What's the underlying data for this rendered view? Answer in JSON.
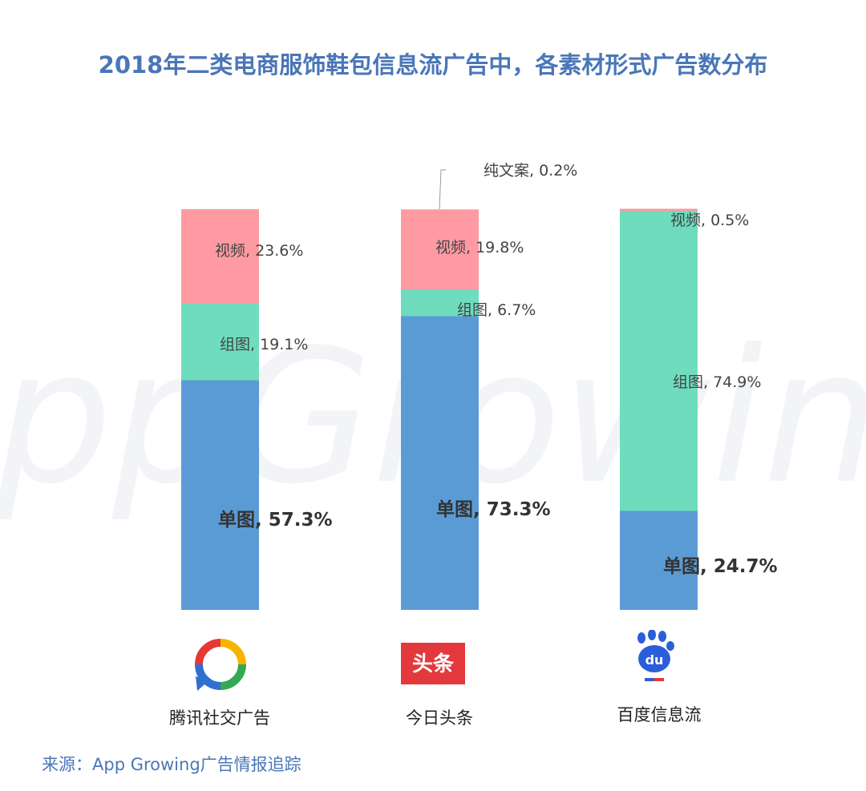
{
  "chart_data": {
    "type": "bar",
    "stacked": true,
    "title": "2018年二类电商服饰鞋包信息流广告中，各素材形式广告数分布",
    "categories": [
      "腾讯社交广告",
      "今日头条",
      "百度信息流"
    ],
    "ylim": [
      0,
      100
    ],
    "grid": false,
    "legend": "none",
    "series": [
      {
        "name": "单图",
        "values": [
          57.3,
          73.3,
          24.7
        ],
        "labels": [
          "单图, 57.3%",
          "单图, 73.3%",
          "单图, 24.7%"
        ]
      },
      {
        "name": "组图",
        "values": [
          19.1,
          6.7,
          74.9
        ],
        "labels": [
          "组图, 19.1%",
          "组图, 6.7%",
          "组图, 74.9%"
        ]
      },
      {
        "name": "视频",
        "values": [
          23.6,
          19.8,
          0.5
        ],
        "labels": [
          "视频, 23.6%",
          "视频, 19.8%",
          "视频, 0.5%"
        ]
      },
      {
        "name": "纯文案",
        "values": [
          0,
          0.2,
          0
        ],
        "labels": [
          "",
          "纯文案, 0.2%",
          ""
        ]
      }
    ]
  },
  "colors": {
    "title": "#4a76b8",
    "单图": "#5b9bd5",
    "组图": "#6edcbd",
    "视频": "#ff9aa2",
    "纯文案": "#f6c49a",
    "watermark": "#f3f4f7"
  },
  "logos": [
    "tencent-social-ads-logo",
    "toutiao-logo",
    "baidu-logo"
  ],
  "toutiao_logo_text": "头条",
  "watermark_text": "AppGrowing",
  "source_note": "来源：App Growing广告情报追踪"
}
